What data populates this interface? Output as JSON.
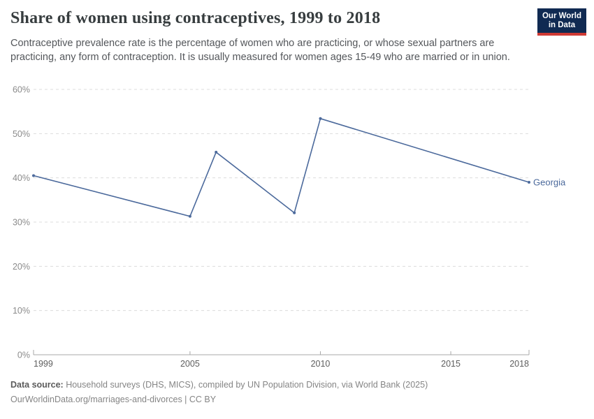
{
  "header": {
    "title": "Share of women using contraceptives, 1999 to 2018",
    "subtitle": "Contraceptive prevalence rate is the percentage of women who are practicing, or whose sexual partners are practicing, any form of contraception. It is usually measured for women ages 15-49 who are married or in union.",
    "logo": {
      "line1": "Our World",
      "line2": "in Data",
      "bg_color": "#102a52",
      "accent_color": "#cf3a34",
      "text_color": "#ffffff"
    }
  },
  "chart_data": {
    "type": "line",
    "title": "Share of women using contraceptives, 1999 to 2018",
    "xlabel": "",
    "ylabel": "",
    "x_range": [
      1999,
      2018
    ],
    "y_range": [
      0,
      60
    ],
    "grid": {
      "show": true,
      "style": "dashed",
      "direction": "horizontal"
    },
    "x_ticks": [
      {
        "v": 1999,
        "label": "1999"
      },
      {
        "v": 2005,
        "label": "2005"
      },
      {
        "v": 2010,
        "label": "2010"
      },
      {
        "v": 2015,
        "label": "2015"
      },
      {
        "v": 2018,
        "label": "2018"
      }
    ],
    "y_ticks": [
      {
        "v": 0,
        "label": "0%"
      },
      {
        "v": 10,
        "label": "10%"
      },
      {
        "v": 20,
        "label": "20%"
      },
      {
        "v": 30,
        "label": "30%"
      },
      {
        "v": 40,
        "label": "40%"
      },
      {
        "v": 50,
        "label": "50%"
      },
      {
        "v": 60,
        "label": "60%"
      }
    ],
    "legend": {
      "position": "end-of-line"
    },
    "series": [
      {
        "name": "Georgia",
        "color": "#4C6A9C",
        "points": [
          [
            1999,
            40.5
          ],
          [
            2005,
            31.3
          ],
          [
            2006,
            45.8
          ],
          [
            2009,
            32.1
          ],
          [
            2010,
            53.4
          ],
          [
            2018,
            39.0
          ]
        ]
      }
    ]
  },
  "footer": {
    "data_source_label": "Data source:",
    "data_source_text": " Household surveys (DHS, MICS), compiled by UN Population Division, via World Bank (2025)",
    "citation": "OurWorldinData.org/marriages-and-divorces | CC BY"
  }
}
